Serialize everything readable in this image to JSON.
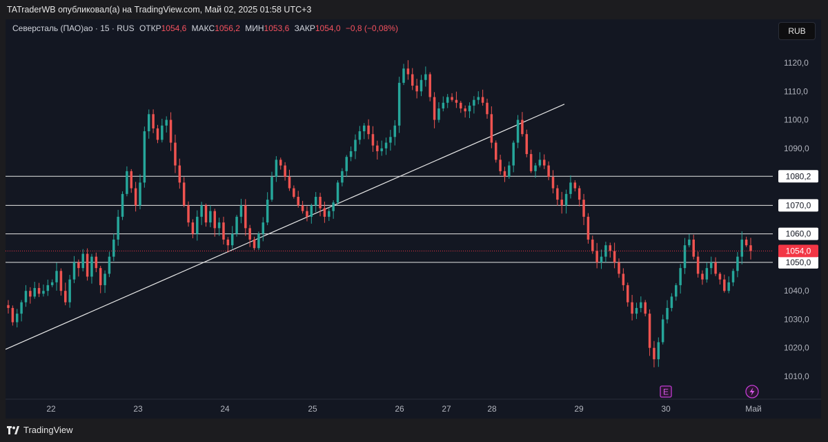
{
  "header": {
    "publisher_text": "TATraderWB опубликовал(а) на TradingView.com, Май 02, 2025 01:58 UTC+3"
  },
  "legend": {
    "symbol": "Северсталь (ПАО)ао · 15 · RUS",
    "open_label": "ОТКР",
    "open_value": "1054,6",
    "high_label": "МАКС",
    "high_value": "1056,2",
    "low_label": "МИН",
    "low_value": "1053,6",
    "close_label": "ЗАКР",
    "close_value": "1054,0",
    "change": "−0,8 (−0,08%)"
  },
  "currency_button": "RUB",
  "footer": {
    "brand": "TradingView"
  },
  "colors": {
    "up": "#26a69a",
    "down": "#ef5350",
    "background": "#131722",
    "price_tag": "#f23645"
  },
  "chart_data": {
    "type": "candlestick",
    "x_ticks": [
      "22",
      "23",
      "24",
      "25",
      "26",
      "27",
      "28",
      "29",
      "30",
      "Май"
    ],
    "y_ticks": [
      "1120,0",
      "1110,0",
      "1100,0",
      "1090,0",
      "1080,0",
      "1070,0",
      "1060,0",
      "1050,0",
      "1040,0",
      "1030,0",
      "1020,0",
      "1010,0"
    ],
    "ylim": [
      1002,
      1128
    ],
    "last_price": 1054.0,
    "last_price_label": "1054,0",
    "horizontal_levels": [
      {
        "value": 1080.2,
        "label": "1080,2"
      },
      {
        "value": 1070.0,
        "label": "1070,0"
      },
      {
        "value": 1060.0,
        "label": "1060,0"
      },
      {
        "value": 1050.0,
        "label": "1050,0"
      }
    ],
    "trendline": {
      "from": {
        "date": "21 Apr",
        "price": 1019.5
      },
      "to": {
        "date": "28 Apr (late)",
        "price": 1105.5
      }
    },
    "event_markers": [
      {
        "icon": "earnings-icon",
        "glyph": "E",
        "date": "30"
      },
      {
        "icon": "lightning-icon",
        "glyph": "⚡",
        "date": "Май"
      }
    ],
    "closes": [
      1034,
      1029,
      1032,
      1036,
      1040,
      1038,
      1041,
      1039,
      1040,
      1042,
      1043,
      1047,
      1040,
      1036,
      1044,
      1050,
      1048,
      1053,
      1045,
      1052,
      1048,
      1042,
      1046,
      1052,
      1058,
      1066,
      1074,
      1082,
      1076,
      1070,
      1078,
      1096,
      1102,
      1097,
      1093,
      1098,
      1100,
      1092,
      1084,
      1078,
      1070,
      1064,
      1060,
      1066,
      1070,
      1064,
      1068,
      1062,
      1064,
      1058,
      1056,
      1060,
      1066,
      1070,
      1062,
      1058,
      1055,
      1060,
      1064,
      1072,
      1080,
      1086,
      1084,
      1080,
      1076,
      1073,
      1070,
      1068,
      1066,
      1070,
      1073,
      1069,
      1066,
      1068,
      1071,
      1078,
      1082,
      1087,
      1089,
      1093,
      1096,
      1098,
      1095,
      1091,
      1089,
      1090,
      1092,
      1094,
      1098,
      1113,
      1118,
      1116,
      1112,
      1110,
      1114,
      1116,
      1108,
      1100,
      1104,
      1106,
      1108,
      1107,
      1106,
      1104,
      1103,
      1105,
      1107,
      1108,
      1106,
      1102,
      1092,
      1086,
      1082,
      1080,
      1084,
      1092,
      1100,
      1095,
      1088,
      1082,
      1084,
      1086,
      1084,
      1080,
      1076,
      1072,
      1070,
      1074,
      1078,
      1076,
      1072,
      1066,
      1058,
      1054,
      1050,
      1052,
      1056,
      1054,
      1050,
      1046,
      1042,
      1036,
      1032,
      1034,
      1036,
      1032,
      1020,
      1016,
      1022,
      1030,
      1034,
      1038,
      1042,
      1048,
      1056,
      1058,
      1052,
      1046,
      1044,
      1048,
      1050,
      1046,
      1044,
      1040,
      1043,
      1047,
      1052,
      1058,
      1056,
      1054
    ]
  }
}
